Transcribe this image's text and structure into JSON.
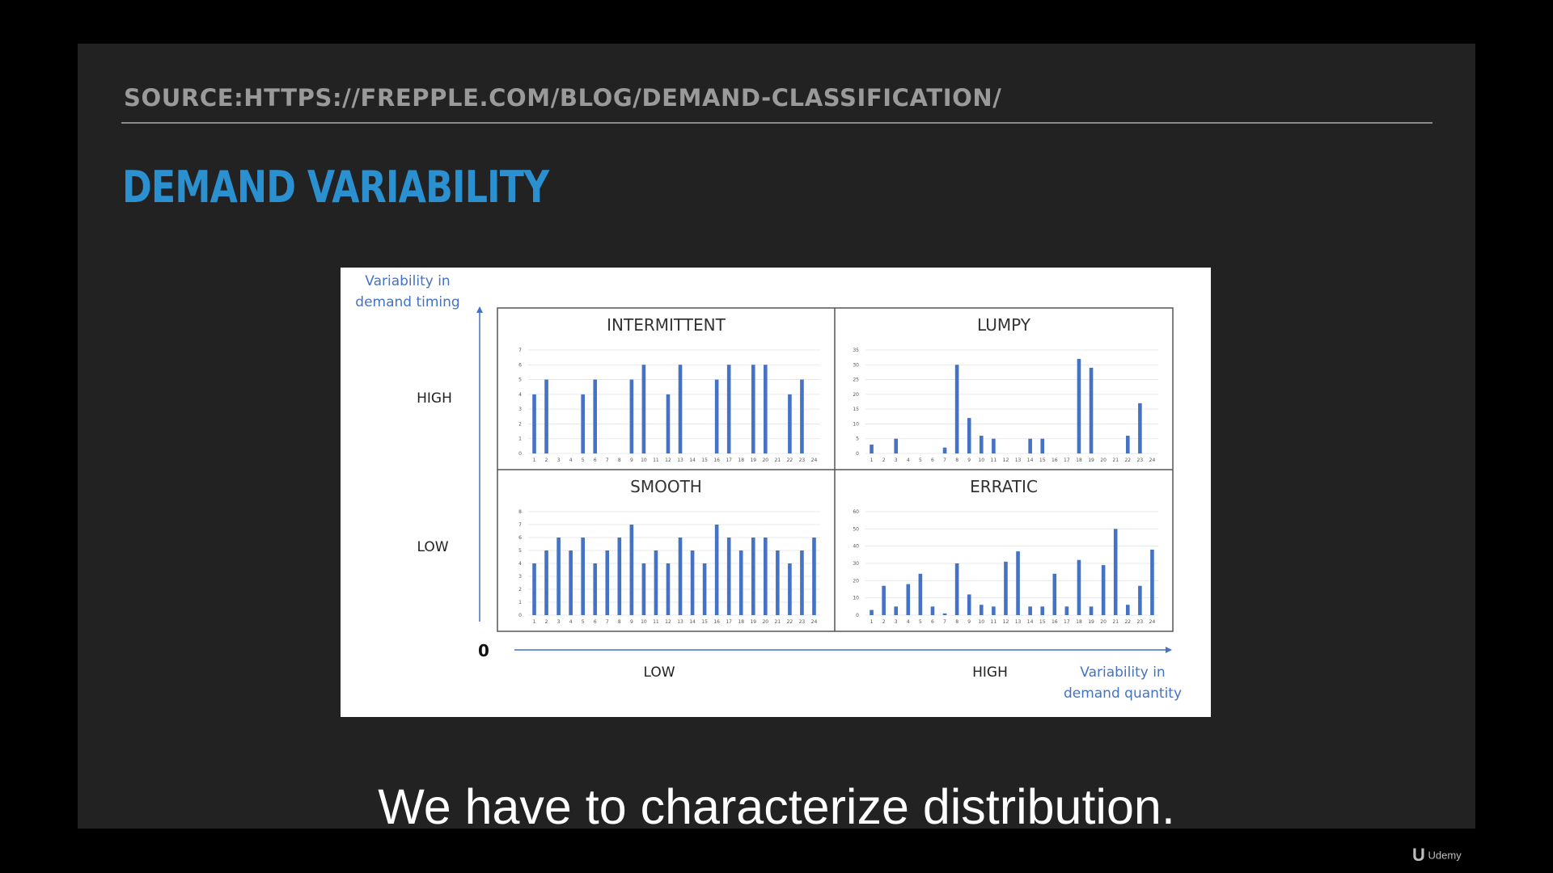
{
  "slide": {
    "source": "SOURCE:HTTPS://FREPPLE.COM/BLOG/DEMAND-CLASSIFICATION/",
    "title": "DEMAND VARIABILITY"
  },
  "caption": "We have to characterize distribution.",
  "brand": {
    "mark": "U",
    "name": "Udemy"
  },
  "colors": {
    "bar": "#4472c4",
    "axis_label": "#4472c4",
    "title": "#2a90d0"
  },
  "figure": {
    "y_axis_label": [
      "Variability in",
      "demand timing"
    ],
    "x_axis_label": [
      "Variability in",
      "demand quantity"
    ],
    "origin_label": "0",
    "y_levels": [
      "HIGH",
      "LOW"
    ],
    "x_levels": [
      "LOW",
      "HIGH"
    ]
  },
  "chart_data": [
    {
      "type": "bar",
      "title": "INTERMITTENT",
      "quadrant": "top-left",
      "categories": [
        "1",
        "2",
        "3",
        "4",
        "5",
        "6",
        "7",
        "8",
        "9",
        "10",
        "11",
        "12",
        "13",
        "14",
        "15",
        "16",
        "17",
        "18",
        "19",
        "20",
        "21",
        "22",
        "23",
        "24"
      ],
      "values": [
        4,
        5,
        0,
        0,
        4,
        5,
        0,
        0,
        5,
        6,
        0,
        4,
        6,
        0,
        0,
        5,
        6,
        0,
        6,
        6,
        0,
        4,
        5,
        0
      ],
      "ylim": [
        0,
        7
      ],
      "yticks": [
        0,
        1,
        2,
        3,
        4,
        5,
        6,
        7
      ],
      "grid": true
    },
    {
      "type": "bar",
      "title": "LUMPY",
      "quadrant": "top-right",
      "categories": [
        "1",
        "2",
        "3",
        "4",
        "5",
        "6",
        "7",
        "8",
        "9",
        "10",
        "11",
        "12",
        "13",
        "14",
        "15",
        "16",
        "17",
        "18",
        "19",
        "20",
        "21",
        "22",
        "23",
        "24"
      ],
      "values": [
        3,
        0,
        5,
        0,
        0,
        0,
        2,
        30,
        12,
        6,
        5,
        0,
        0,
        5,
        5,
        0,
        0,
        32,
        29,
        0,
        0,
        6,
        17,
        0
      ],
      "ylim": [
        0,
        35
      ],
      "yticks": [
        0,
        5,
        10,
        15,
        20,
        25,
        30,
        35
      ],
      "grid": true
    },
    {
      "type": "bar",
      "title": "SMOOTH",
      "quadrant": "bottom-left",
      "categories": [
        "1",
        "2",
        "3",
        "4",
        "5",
        "6",
        "7",
        "8",
        "9",
        "10",
        "11",
        "12",
        "13",
        "14",
        "15",
        "16",
        "17",
        "18",
        "19",
        "20",
        "21",
        "22",
        "23",
        "24"
      ],
      "values": [
        4,
        5,
        6,
        5,
        6,
        4,
        5,
        6,
        7,
        4,
        5,
        4,
        6,
        5,
        4,
        7,
        6,
        5,
        6,
        6,
        5,
        4,
        5,
        6
      ],
      "ylim": [
        0,
        8
      ],
      "yticks": [
        0,
        1,
        2,
        3,
        4,
        5,
        6,
        7,
        8
      ],
      "grid": true
    },
    {
      "type": "bar",
      "title": "ERRATIC",
      "quadrant": "bottom-right",
      "categories": [
        "1",
        "2",
        "3",
        "4",
        "5",
        "6",
        "7",
        "8",
        "9",
        "10",
        "11",
        "12",
        "13",
        "14",
        "15",
        "16",
        "17",
        "18",
        "19",
        "20",
        "21",
        "22",
        "23",
        "24"
      ],
      "values": [
        3,
        17,
        5,
        18,
        24,
        5,
        1,
        30,
        12,
        6,
        5,
        31,
        37,
        5,
        5,
        24,
        5,
        32,
        5,
        29,
        50,
        6,
        17,
        38
      ],
      "ylim": [
        0,
        60
      ],
      "yticks": [
        0,
        10,
        20,
        30,
        40,
        50,
        60
      ],
      "grid": true
    }
  ]
}
